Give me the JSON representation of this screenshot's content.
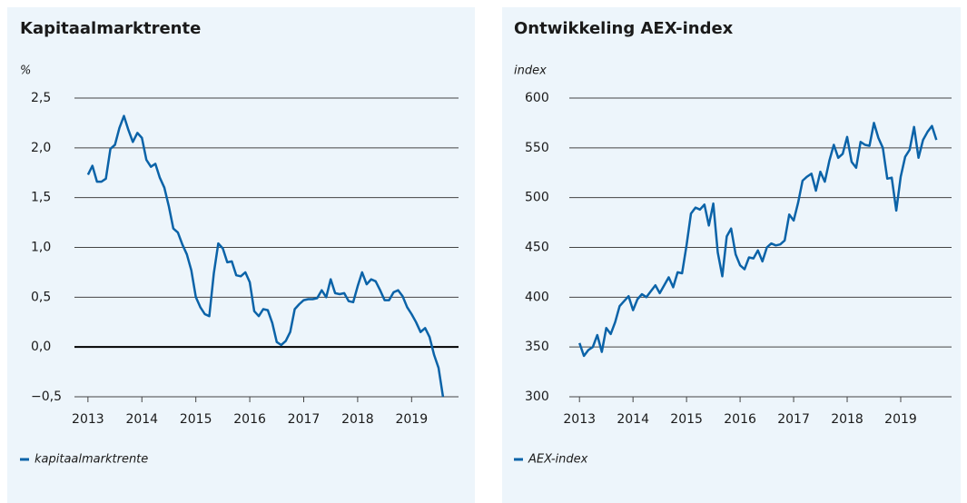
{
  "chart_data": [
    {
      "type": "line",
      "title": "Kapitaalmarktrente",
      "y_label": "%",
      "x": [
        2013,
        2013.083,
        2013.167,
        2013.25,
        2013.333,
        2013.417,
        2013.5,
        2013.583,
        2013.667,
        2013.75,
        2013.833,
        2013.917,
        2014,
        2014.083,
        2014.167,
        2014.25,
        2014.333,
        2014.417,
        2014.5,
        2014.583,
        2014.667,
        2014.75,
        2014.833,
        2014.917,
        2015,
        2015.083,
        2015.167,
        2015.25,
        2015.333,
        2015.417,
        2015.5,
        2015.583,
        2015.667,
        2015.75,
        2015.833,
        2015.917,
        2016,
        2016.083,
        2016.167,
        2016.25,
        2016.333,
        2016.417,
        2016.5,
        2016.583,
        2016.667,
        2016.75,
        2016.833,
        2016.917,
        2017,
        2017.083,
        2017.167,
        2017.25,
        2017.333,
        2017.417,
        2017.5,
        2017.583,
        2017.667,
        2017.75,
        2017.833,
        2017.917,
        2018,
        2018.083,
        2018.167,
        2018.25,
        2018.333,
        2018.417,
        2018.5,
        2018.583,
        2018.667,
        2018.75,
        2018.833,
        2018.917,
        2019,
        2019.083,
        2019.167,
        2019.25,
        2019.333,
        2019.417,
        2019.5,
        2019.583
      ],
      "series": [
        {
          "name": "kapitaalmarktrente",
          "color": "#0b63a8",
          "values": [
            1.73,
            1.82,
            1.66,
            1.66,
            1.69,
            1.99,
            2.03,
            2.2,
            2.32,
            2.18,
            2.06,
            2.15,
            2.1,
            1.88,
            1.81,
            1.84,
            1.7,
            1.6,
            1.41,
            1.19,
            1.15,
            1.03,
            0.93,
            0.77,
            0.5,
            0.4,
            0.33,
            0.31,
            0.74,
            1.04,
            0.99,
            0.85,
            0.86,
            0.72,
            0.71,
            0.75,
            0.65,
            0.36,
            0.31,
            0.38,
            0.37,
            0.24,
            0.05,
            0.02,
            0.06,
            0.15,
            0.38,
            0.43,
            0.47,
            0.48,
            0.48,
            0.49,
            0.57,
            0.5,
            0.68,
            0.54,
            0.53,
            0.54,
            0.46,
            0.45,
            0.61,
            0.75,
            0.63,
            0.68,
            0.66,
            0.57,
            0.47,
            0.47,
            0.55,
            0.57,
            0.51,
            0.4,
            0.33,
            0.25,
            0.15,
            0.19,
            0.1,
            -0.08,
            -0.21,
            -0.5
          ]
        }
      ],
      "xlim": [
        2012.75,
        2019.87
      ],
      "xticks": [
        2013,
        2014,
        2015,
        2016,
        2017,
        2018,
        2019
      ],
      "ylim": [
        -0.5,
        2.5
      ],
      "yticks": [
        {
          "value": -0.5,
          "label": "−0,5"
        },
        {
          "value": 0,
          "label": "0,0"
        },
        {
          "value": 0.5,
          "label": "0,5"
        },
        {
          "value": 1,
          "label": "1,0"
        },
        {
          "value": 1.5,
          "label": "1,5"
        },
        {
          "value": 2,
          "label": "2,0"
        },
        {
          "value": 2.5,
          "label": "2,5"
        }
      ],
      "grid": true,
      "zero_line": true
    },
    {
      "type": "line",
      "title": "Ontwikkeling AEX-index",
      "y_label": "index",
      "x": [
        2013,
        2013.083,
        2013.167,
        2013.25,
        2013.333,
        2013.417,
        2013.5,
        2013.583,
        2013.667,
        2013.75,
        2013.833,
        2013.917,
        2014,
        2014.083,
        2014.167,
        2014.25,
        2014.333,
        2014.417,
        2014.5,
        2014.583,
        2014.667,
        2014.75,
        2014.833,
        2014.917,
        2015,
        2015.083,
        2015.167,
        2015.25,
        2015.333,
        2015.417,
        2015.5,
        2015.583,
        2015.667,
        2015.75,
        2015.833,
        2015.917,
        2016,
        2016.083,
        2016.167,
        2016.25,
        2016.333,
        2016.417,
        2016.5,
        2016.583,
        2016.667,
        2016.75,
        2016.833,
        2016.917,
        2017,
        2017.083,
        2017.167,
        2017.25,
        2017.333,
        2017.417,
        2017.5,
        2017.583,
        2017.667,
        2017.75,
        2017.833,
        2017.917,
        2018,
        2018.083,
        2018.167,
        2018.25,
        2018.333,
        2018.417,
        2018.5,
        2018.583,
        2018.667,
        2018.75,
        2018.833,
        2018.917,
        2019,
        2019.083,
        2019.167,
        2019.25,
        2019.333,
        2019.417,
        2019.5,
        2019.583,
        2019.667
      ],
      "series": [
        {
          "name": "AEX-index",
          "color": "#0b63a8",
          "values": [
            354,
            341,
            347,
            350,
            362,
            345,
            369,
            363,
            375,
            391,
            396,
            401,
            387,
            398,
            403,
            400,
            406,
            412,
            404,
            412,
            420,
            410,
            425,
            424,
            452,
            484,
            490,
            488,
            493,
            472,
            494,
            445,
            421,
            461,
            469,
            443,
            432,
            428,
            440,
            439,
            447,
            436,
            450,
            454,
            452,
            453,
            457,
            483,
            477,
            495,
            517,
            521,
            524,
            507,
            526,
            516,
            537,
            553,
            540,
            544,
            561,
            536,
            530,
            556,
            553,
            552,
            575,
            560,
            550,
            519,
            520,
            487,
            521,
            541,
            548,
            571,
            540,
            558,
            566,
            572,
            558
          ]
        }
      ],
      "xlim": [
        2012.81,
        2019.95
      ],
      "xticks": [
        2013,
        2014,
        2015,
        2016,
        2017,
        2018,
        2019
      ],
      "ylim": [
        300,
        600
      ],
      "yticks": [
        300,
        350,
        400,
        450,
        500,
        550,
        600
      ],
      "grid": true,
      "zero_line": false
    }
  ]
}
